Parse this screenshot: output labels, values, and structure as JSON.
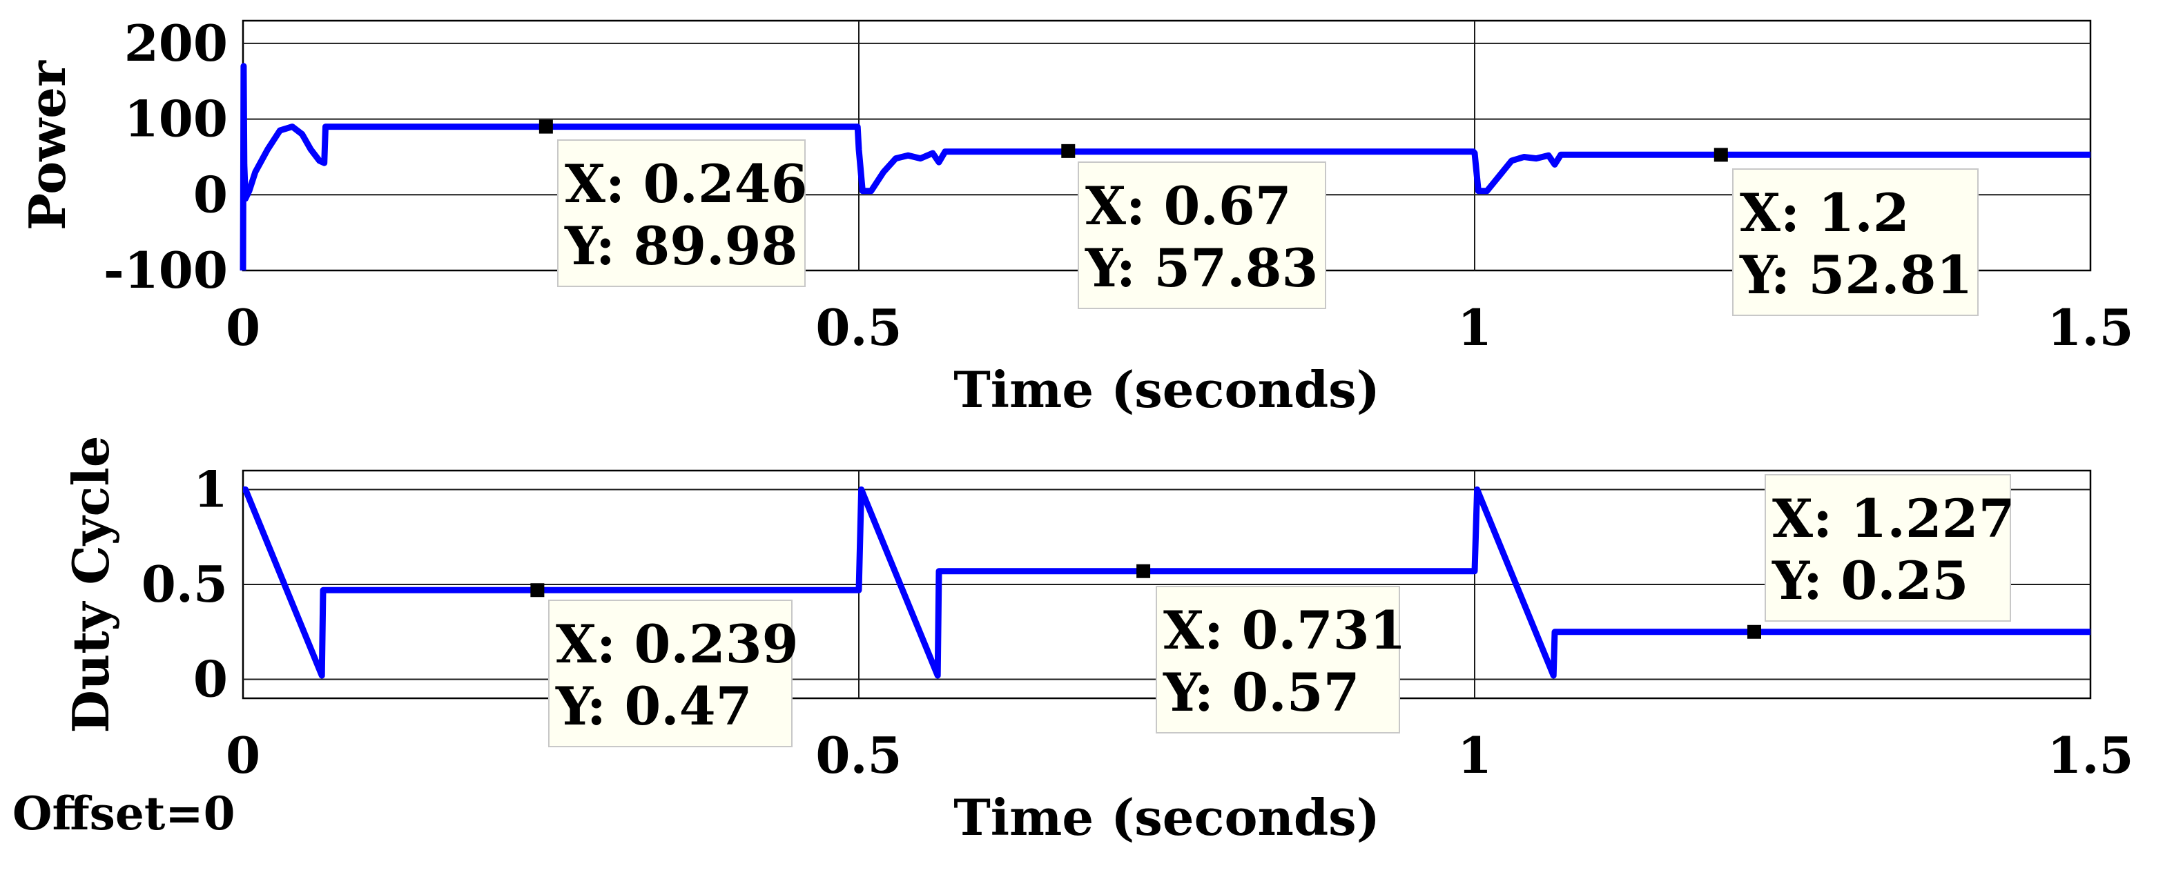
{
  "footer": {
    "offset_label": "Offset=0"
  },
  "chart_data": [
    {
      "type": "line",
      "title": "",
      "xlabel": "Time (seconds)",
      "ylabel": "Power",
      "xlim": [
        0,
        1.5
      ],
      "ylim": [
        -100,
        230
      ],
      "xticks": [
        0,
        0.5,
        1,
        1.5
      ],
      "xtick_labels": [
        "0",
        "0.5",
        "1",
        "1.5"
      ],
      "yticks": [
        -100,
        0,
        100,
        200
      ],
      "ytick_labels": [
        "-100",
        "0",
        "100",
        "200"
      ],
      "grid": true,
      "series": [
        {
          "color": "#0000ff",
          "x": [
            0,
            0.0005,
            0.001,
            0.002,
            0.005,
            0.01,
            0.02,
            0.03,
            0.04,
            0.048,
            0.055,
            0.062,
            0.066,
            0.067,
            0.068,
            0.07,
            0.1,
            0.2,
            0.3,
            0.4,
            0.499,
            0.5,
            0.503,
            0.51,
            0.52,
            0.53,
            0.54,
            0.55,
            0.56,
            0.565,
            0.57,
            0.6,
            0.7,
            0.8,
            0.9,
            0.999,
            1.0,
            1.003,
            1.01,
            1.02,
            1.03,
            1.04,
            1.05,
            1.06,
            1.065,
            1.07,
            1.1,
            1.2,
            1.3,
            1.4,
            1.5
          ],
          "y": [
            -100,
            170,
            40,
            -5,
            5,
            30,
            60,
            85,
            90,
            80,
            60,
            45,
            42,
            90,
            90,
            90,
            90,
            90,
            90,
            90,
            90,
            60,
            5,
            5,
            30,
            48,
            52,
            48,
            55,
            43,
            57,
            57,
            57,
            57,
            57,
            57,
            55,
            5,
            5,
            25,
            45,
            50,
            48,
            52,
            40,
            53,
            53,
            53,
            53,
            53,
            53
          ]
        }
      ],
      "data_tips": [
        {
          "x": 0.246,
          "y": 89.98,
          "label_x": "X: 0.246",
          "label_y": "Y: 89.98"
        },
        {
          "x": 0.67,
          "y": 57.83,
          "label_x": "X: 0.67",
          "label_y": "Y: 57.83"
        },
        {
          "x": 1.2,
          "y": 52.81,
          "label_x": "X: 1.2",
          "label_y": "Y: 52.81"
        }
      ]
    },
    {
      "type": "line",
      "title": "",
      "xlabel": "Time (seconds)",
      "ylabel": "Duty Cycle",
      "xlim": [
        0,
        1.5
      ],
      "ylim": [
        -0.1,
        1.1
      ],
      "xticks": [
        0,
        0.5,
        1,
        1.5
      ],
      "xtick_labels": [
        "0",
        "0.5",
        "1",
        "1.5"
      ],
      "yticks": [
        0,
        0.5,
        1
      ],
      "ytick_labels": [
        "0",
        "0.5",
        "1"
      ],
      "grid": true,
      "series": [
        {
          "color": "#0000ff",
          "x": [
            0,
            0.002,
            0.064,
            0.064,
            0.065,
            0.499,
            0.5,
            0.502,
            0.564,
            0.564,
            0.565,
            0.999,
            1.0,
            1.002,
            1.064,
            1.064,
            1.065,
            1.5
          ],
          "y": [
            1.0,
            1.0,
            0.02,
            0.02,
            0.47,
            0.47,
            0.47,
            1.0,
            0.02,
            0.02,
            0.57,
            0.57,
            0.57,
            1.0,
            0.02,
            0.02,
            0.25,
            0.25
          ]
        }
      ],
      "data_tips": [
        {
          "x": 0.239,
          "y": 0.47,
          "label_x": "X: 0.239",
          "label_y": "Y: 0.47"
        },
        {
          "x": 0.731,
          "y": 0.57,
          "label_x": "X: 0.731",
          "label_y": "Y: 0.57"
        },
        {
          "x": 1.227,
          "y": 0.25,
          "label_x": "X: 1.227",
          "label_y": "Y: 0.25"
        }
      ]
    }
  ]
}
